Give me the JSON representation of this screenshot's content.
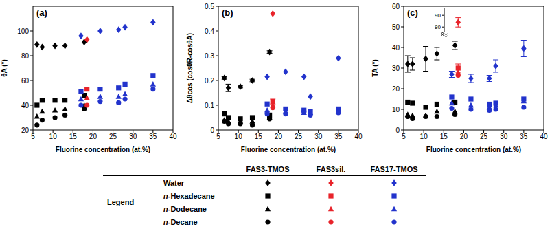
{
  "chart_data": [
    {
      "type": "scatter",
      "title": "(a)",
      "x_label": "Fluorine concentration (at.%)",
      "y_label": "θA (°)",
      "xlim": [
        5,
        40
      ],
      "xticks": [
        5,
        10,
        15,
        20,
        25,
        30,
        35,
        40
      ],
      "ylim": [
        20,
        120
      ],
      "yticks": [
        20,
        40,
        60,
        80,
        100
      ],
      "series": [
        {
          "name": "Water",
          "group": "FAS3-TMOS",
          "color": "#000000",
          "marker": "diamond",
          "x": [
            6,
            7.3,
            10.5,
            13,
            17.8
          ],
          "values": [
            89,
            87,
            88,
            88,
            91
          ]
        },
        {
          "name": "n-Hexadecane",
          "group": "FAS3-TMOS",
          "color": "#000000",
          "marker": "square",
          "x": [
            6,
            7.3,
            10.5,
            13,
            17.8
          ],
          "values": [
            40,
            44,
            44,
            44,
            48
          ]
        },
        {
          "name": "n-Dodecane",
          "group": "FAS3-TMOS",
          "color": "#000000",
          "marker": "triangle",
          "x": [
            6,
            7.3,
            10.5,
            13,
            17.8
          ],
          "values": [
            31,
            35,
            36,
            37,
            40
          ]
        },
        {
          "name": "n-Decane",
          "group": "FAS3-TMOS",
          "color": "#000000",
          "marker": "circle",
          "x": [
            6,
            7.3,
            10.5,
            13,
            17.8
          ],
          "values": [
            24,
            28,
            30,
            32,
            37
          ]
        },
        {
          "name": "Water",
          "group": "FAS3sil.",
          "color": "#e8232a",
          "marker": "diamond",
          "x": [
            18.5
          ],
          "values": [
            93
          ]
        },
        {
          "name": "n-Hexadecane",
          "group": "FAS3sil.",
          "color": "#e8232a",
          "marker": "square",
          "x": [
            18.5
          ],
          "values": [
            53
          ]
        },
        {
          "name": "n-Dodecane",
          "group": "FAS3sil.",
          "color": "#e8232a",
          "marker": "triangle",
          "x": [
            18.5
          ],
          "values": [
            46
          ]
        },
        {
          "name": "n-Decane",
          "group": "FAS3sil.",
          "color": "#e8232a",
          "marker": "circle",
          "x": [
            18.5
          ],
          "values": [
            40
          ]
        },
        {
          "name": "Water",
          "group": "FAS17-TMOS",
          "color": "#2233cc",
          "marker": "diamond",
          "x": [
            17,
            21.8,
            26.4,
            28,
            35
          ],
          "values": [
            96,
            100,
            101,
            103,
            107
          ]
        },
        {
          "name": "n-Hexadecane",
          "group": "FAS17-TMOS",
          "color": "#2233cc",
          "marker": "square",
          "x": [
            17,
            21.8,
            26.4,
            28,
            35
          ],
          "values": [
            51,
            53,
            54,
            57,
            64
          ]
        },
        {
          "name": "n-Dodecane",
          "group": "FAS17-TMOS",
          "color": "#2233cc",
          "marker": "triangle",
          "x": [
            17,
            21.8,
            26.4,
            28,
            35
          ],
          "values": [
            45,
            47,
            47,
            49,
            57
          ]
        },
        {
          "name": "n-Decane",
          "group": "FAS17-TMOS",
          "color": "#2233cc",
          "marker": "circle",
          "x": [
            17,
            21.8,
            26.4,
            28,
            35
          ],
          "values": [
            40,
            43,
            42,
            45,
            53
          ]
        }
      ]
    },
    {
      "type": "scatter",
      "title": "(b)",
      "x_label": "Fluorine concentration (at.%)",
      "y_label": "Δθcos (cosθR-cosθA)",
      "xlim": [
        5,
        40
      ],
      "xticks": [
        5,
        10,
        15,
        20,
        25,
        30,
        35,
        40
      ],
      "ylim": [
        0,
        0.5
      ],
      "yticks": [
        0,
        0.1,
        0.2,
        0.3,
        0.4,
        0.5
      ],
      "series": [
        {
          "name": "Water",
          "group": "FAS3-TMOS",
          "color": "#000000",
          "marker": "diamond",
          "x": [
            6.5,
            7.5,
            10.5,
            13.5,
            17.8
          ],
          "values": [
            0.21,
            0.17,
            0.175,
            0.2,
            0.315
          ],
          "errors": [
            0.005,
            0.015,
            0.005,
            0.005,
            0.005
          ]
        },
        {
          "name": "n-Hexadecane",
          "group": "FAS3-TMOS",
          "color": "#000000",
          "marker": "square",
          "x": [
            6.5,
            7.5,
            10.5,
            13.5,
            17.8
          ],
          "values": [
            0.065,
            0.05,
            0.045,
            0.05,
            0.06
          ]
        },
        {
          "name": "n-Dodecane",
          "group": "FAS3-TMOS",
          "color": "#000000",
          "marker": "triangle",
          "x": [
            6.5,
            7.5,
            10.5,
            13.5,
            17.8
          ],
          "values": [
            0.04,
            0.035,
            0.035,
            0.035,
            0.05
          ]
        },
        {
          "name": "n-Decane",
          "group": "FAS3-TMOS",
          "color": "#000000",
          "marker": "circle",
          "x": [
            6.5,
            7.5,
            10.5,
            13.5,
            17.8
          ],
          "values": [
            0.035,
            0.025,
            0.025,
            0.02,
            0.045
          ]
        },
        {
          "name": "Water",
          "group": "FAS3sil.",
          "color": "#e8232a",
          "marker": "diamond",
          "x": [
            18.6
          ],
          "values": [
            0.47
          ]
        },
        {
          "name": "n-Hexadecane",
          "group": "FAS3sil.",
          "color": "#e8232a",
          "marker": "square",
          "x": [
            18.6
          ],
          "values": [
            0.115
          ],
          "errors": [
            0.01
          ]
        },
        {
          "name": "n-Dodecane",
          "group": "FAS3sil.",
          "color": "#e8232a",
          "marker": "triangle",
          "x": [
            18.6
          ],
          "values": [
            0.1
          ]
        },
        {
          "name": "n-Decane",
          "group": "FAS3sil.",
          "color": "#e8232a",
          "marker": "circle",
          "x": [
            18.6
          ],
          "values": [
            0.09
          ]
        },
        {
          "name": "Water",
          "group": "FAS17-TMOS",
          "color": "#2233cc",
          "marker": "diamond",
          "x": [
            17.2,
            21.8,
            26.4,
            28,
            35
          ],
          "values": [
            0.215,
            0.235,
            0.215,
            0.135,
            0.29
          ]
        },
        {
          "name": "n-Hexadecane",
          "group": "FAS17-TMOS",
          "color": "#2233cc",
          "marker": "square",
          "x": [
            17.2,
            21.8,
            26.4,
            28,
            35
          ],
          "values": [
            0.105,
            0.085,
            0.08,
            0.075,
            0.085
          ]
        },
        {
          "name": "n-Dodecane",
          "group": "FAS17-TMOS",
          "color": "#2233cc",
          "marker": "triangle",
          "x": [
            17.2,
            21.8,
            26.4,
            28,
            35
          ],
          "values": [
            0.08,
            0.075,
            0.07,
            0.07,
            0.075
          ]
        },
        {
          "name": "n-Decane",
          "group": "FAS17-TMOS",
          "color": "#2233cc",
          "marker": "circle",
          "x": [
            17.2,
            21.8,
            26.4,
            28,
            35
          ],
          "values": [
            0.065,
            0.065,
            0.075,
            0.06,
            0.07
          ]
        }
      ]
    },
    {
      "type": "scatter",
      "title": "(c)",
      "x_label": "Fluorine concentration (at.%)",
      "y_label": "TA (°)",
      "xlim": [
        5,
        40
      ],
      "xticks": [
        5,
        10,
        15,
        20,
        25,
        30,
        35,
        40
      ],
      "ylim": [
        0,
        60
      ],
      "yticks": [
        0,
        10,
        20,
        30,
        40,
        50,
        60
      ],
      "series": [
        {
          "name": "Water",
          "group": "FAS3-TMOS",
          "color": "#000000",
          "marker": "diamond",
          "x": [
            6,
            7.2,
            10.5,
            13.3,
            17.8
          ],
          "values": [
            32,
            32,
            34.5,
            37,
            41
          ],
          "errors": [
            4,
            3,
            6,
            3,
            2
          ]
        },
        {
          "name": "n-Hexadecane",
          "group": "FAS3-TMOS",
          "color": "#000000",
          "marker": "square",
          "x": [
            6,
            7.2,
            10.5,
            13.3,
            17.8
          ],
          "values": [
            13.5,
            13,
            11,
            12.5,
            13.5
          ]
        },
        {
          "name": "n-Dodecane",
          "group": "FAS3-TMOS",
          "color": "#000000",
          "marker": "triangle",
          "x": [
            6,
            7.2,
            10.5,
            13.3,
            17.8
          ],
          "values": [
            7.5,
            7,
            7,
            9,
            9
          ]
        },
        {
          "name": "n-Decane",
          "group": "FAS3-TMOS",
          "color": "#000000",
          "marker": "circle",
          "x": [
            6,
            7.2,
            10.5,
            13.3,
            17.8
          ],
          "values": [
            6.5,
            5.5,
            6.5,
            6.5,
            7.5
          ]
        },
        {
          "name": "n-Hexadecane",
          "group": "FAS3sil.",
          "color": "#e8232a",
          "marker": "square",
          "x": [
            18.6
          ],
          "values": [
            30
          ],
          "errors": [
            2
          ]
        },
        {
          "name": "n-Dodecane",
          "group": "FAS3sil.",
          "color": "#e8232a",
          "marker": "triangle",
          "x": [
            18.6
          ],
          "values": [
            28
          ]
        },
        {
          "name": "n-Decane",
          "group": "FAS3sil.",
          "color": "#e8232a",
          "marker": "circle",
          "x": [
            18.6
          ],
          "values": [
            26.5
          ]
        },
        {
          "name": "Water",
          "group": "FAS17-TMOS",
          "color": "#2233cc",
          "marker": "diamond",
          "x": [
            17,
            21.8,
            26.4,
            28,
            35
          ],
          "values": [
            27,
            25,
            25,
            31,
            39.5
          ],
          "errors": [
            1.5,
            2,
            1.5,
            3,
            4
          ]
        },
        {
          "name": "n-Hexadecane",
          "group": "FAS17-TMOS",
          "color": "#2233cc",
          "marker": "square",
          "x": [
            17,
            21.8,
            26.4,
            28,
            35
          ],
          "values": [
            16,
            15,
            12.5,
            13,
            15
          ]
        },
        {
          "name": "n-Dodecane",
          "group": "FAS17-TMOS",
          "color": "#2233cc",
          "marker": "triangle",
          "x": [
            17,
            21.8,
            26.4,
            28,
            35
          ],
          "values": [
            13,
            12,
            11,
            12,
            14
          ]
        },
        {
          "name": "n-Decane",
          "group": "FAS17-TMOS",
          "color": "#2233cc",
          "marker": "circle",
          "x": [
            17,
            21.8,
            26.4,
            28,
            35
          ],
          "values": [
            10.5,
            10,
            9.5,
            10,
            11
          ]
        }
      ],
      "inset": {
        "type": "scatter",
        "xlim": [
          17,
          20
        ],
        "ylim": [
          76,
          96
        ],
        "yticks": [
          80,
          90
        ],
        "tick_labels": "y",
        "series": [
          {
            "name": "Water",
            "group": "FAS3sil.",
            "color": "#e8232a",
            "marker": "diamond",
            "x": [
              18.6
            ],
            "values": [
              84
            ],
            "errors": [
              4
            ]
          }
        ]
      }
    }
  ],
  "legend_table": {
    "title": "Legend",
    "columns": [
      {
        "name": "FAS3-TMOS",
        "color": "#000000"
      },
      {
        "name": "FAS3sil.",
        "color": "#e8232a"
      },
      {
        "name": "FAS17-TMOS",
        "color": "#2233cc"
      }
    ],
    "rows": [
      {
        "name": "Water",
        "marker": "diamond"
      },
      {
        "name": "n-Hexadecane",
        "marker": "square"
      },
      {
        "name": "n-Dodecane",
        "marker": "triangle"
      },
      {
        "name": "n-Decane",
        "marker": "circle"
      }
    ]
  }
}
